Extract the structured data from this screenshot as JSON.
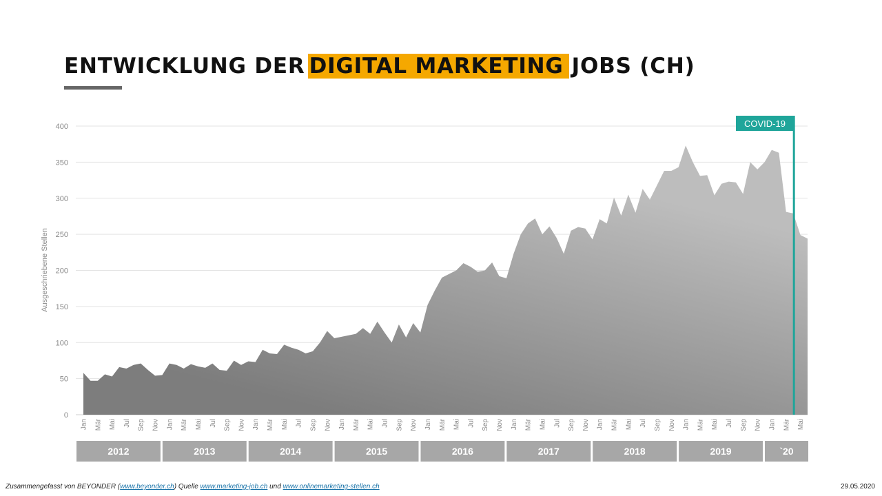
{
  "title": {
    "part1": "ENTWICKLUNG DER",
    "highlight": "DIGITAL MARKETING",
    "part2": "JOBS (CH)",
    "highlight_color": "#f5a800"
  },
  "footer": {
    "prefix": "Zusammengefasst von BEYONDER (",
    "link1": "www.beyonder.ch",
    "middle": ")  Quelle",
    "link2": "www.marketing-job.ch",
    "und": "und",
    "link3": "www.onlinemarketing-stellen.ch",
    "date": "29.05.2020"
  },
  "chart_data": {
    "type": "area",
    "ylabel": "Ausgeschriebene  Stellen",
    "ylim": [
      0,
      400
    ],
    "yticks": [
      0,
      50,
      100,
      150,
      200,
      250,
      300,
      350,
      400
    ],
    "grid": true,
    "month_tick_labels": [
      "Jan",
      "Mär",
      "Mai",
      "Jul",
      "Sep",
      "Nov"
    ],
    "year_labels": [
      "2012",
      "2013",
      "2014",
      "2015",
      "2016",
      "2017",
      "2018",
      "2019",
      "`20"
    ],
    "annotation": {
      "label": "COVID-19",
      "x_index": 99,
      "color": "#1fa59a"
    },
    "series": [
      {
        "values": [
          58,
          47,
          47,
          56,
          53,
          66,
          64,
          69,
          71,
          62,
          54,
          55,
          71,
          69,
          64,
          70,
          67,
          65,
          71,
          62,
          61,
          75,
          69,
          74,
          73,
          90,
          85,
          84,
          97,
          93,
          90,
          85,
          88,
          100,
          116,
          106,
          108,
          110,
          112,
          120,
          112,
          129,
          114,
          100,
          125,
          107,
          127,
          114,
          152,
          172,
          190,
          195,
          200,
          210,
          205,
          198,
          200,
          211,
          192,
          189,
          223,
          250,
          265,
          272,
          250,
          261,
          245,
          223,
          255,
          260,
          258,
          243,
          271,
          265,
          301,
          276,
          305,
          280,
          313,
          298,
          318,
          338,
          338,
          343,
          373,
          350,
          331,
          332,
          304,
          320,
          323,
          322,
          306,
          350,
          340,
          350,
          367,
          363,
          281,
          279,
          249,
          244
        ]
      }
    ]
  }
}
